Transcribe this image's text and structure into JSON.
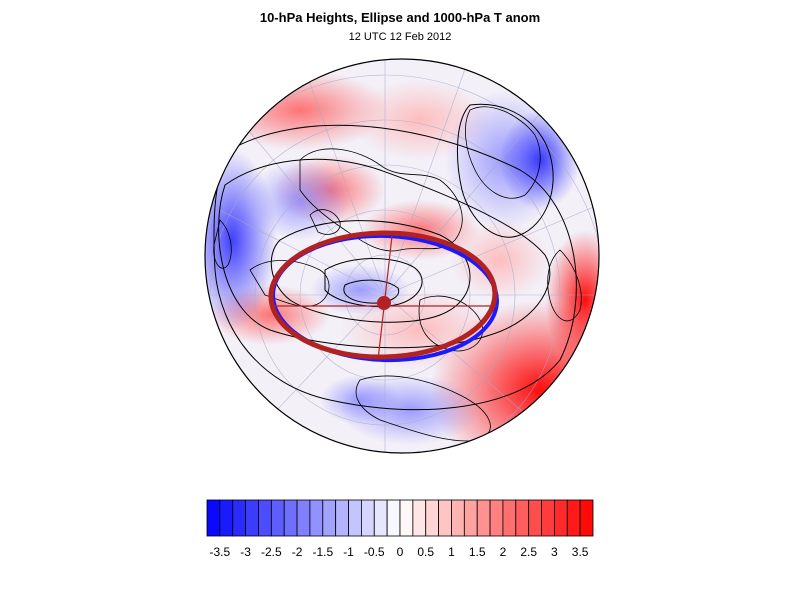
{
  "title": "10-hPa Heights, Ellipse and 1000-hPa T anom",
  "subtitle": "12 UTC 12 Feb 2012",
  "colors": {
    "cold": "#0000ff",
    "warm": "#ff0000",
    "neutral": "#ffffff",
    "ellipse_outer": "#b22222",
    "ellipse_inner": "#1a1aff",
    "contour": "#000000",
    "center_dot": "#b22222"
  },
  "colorbar": {
    "levels": [
      -3.75,
      -3.5,
      -3.25,
      -3,
      -2.75,
      -2.5,
      -2.25,
      -2,
      -1.75,
      -1.5,
      -1.25,
      -1,
      -0.75,
      -0.5,
      -0.25,
      0,
      0.25,
      0.5,
      0.75,
      1,
      1.25,
      1.5,
      1.75,
      2,
      2.25,
      2.5,
      2.75,
      3,
      3.25,
      3.5,
      3.75
    ],
    "labels": [
      "-3.5",
      "-3",
      "-2.5",
      "-2",
      "-1.5",
      "-1",
      "-0.5",
      "0",
      "0.5",
      "1",
      "1.5",
      "2",
      "2.5",
      "3",
      "3.5"
    ]
  },
  "map": {
    "projection": "polar-stereographic",
    "hemisphere": "north",
    "grid": true
  }
}
